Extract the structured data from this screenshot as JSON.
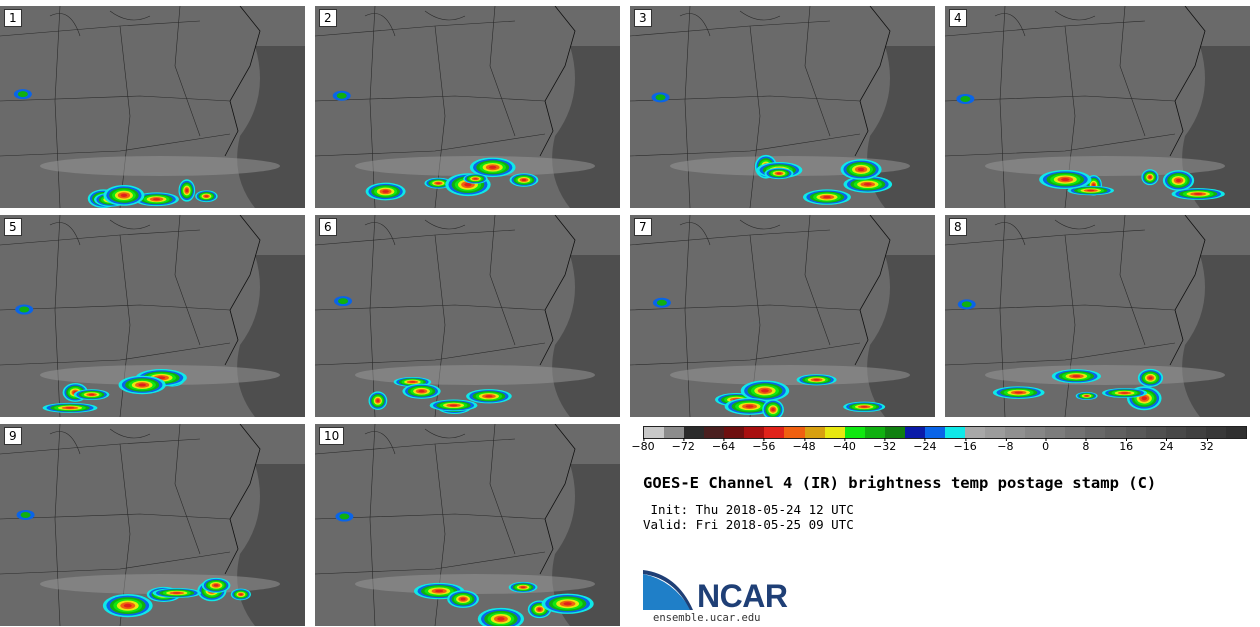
{
  "panels": [
    {
      "label": "1"
    },
    {
      "label": "2"
    },
    {
      "label": "3"
    },
    {
      "label": "4"
    },
    {
      "label": "5"
    },
    {
      "label": "6"
    },
    {
      "label": "7"
    },
    {
      "label": "8"
    },
    {
      "label": "9"
    },
    {
      "label": "10"
    }
  ],
  "colorbar": {
    "colors": [
      "#c8c8c8",
      "#8c8c8c",
      "#2b2b2b",
      "#4a1f1f",
      "#6e0f0f",
      "#a80f0f",
      "#e0221a",
      "#f06010",
      "#d8a010",
      "#e8e810",
      "#10e810",
      "#10b010",
      "#108010",
      "#0a1aa8",
      "#0a64e8",
      "#10e8e8",
      "#a8a8a8",
      "#9c9c9c",
      "#909090",
      "#868686",
      "#7c7c7c",
      "#727272",
      "#686868",
      "#606060",
      "#585858",
      "#505050",
      "#484848",
      "#404040",
      "#383838",
      "#303030"
    ],
    "ticks": [
      "−80",
      "−72",
      "−64",
      "−56",
      "−48",
      "−40",
      "−32",
      "−24",
      "−16",
      "−8",
      "0",
      "8",
      "16",
      "24",
      "32"
    ]
  },
  "title": "GOES-E Channel 4 (IR) brightness temp postage stamp (C)",
  "init": " Init: Thu 2018-05-24 12 UTC",
  "valid": "Valid: Fri 2018-05-25 09 UTC",
  "logo_text": "NCAR",
  "site": "ensemble.ucar.edu"
}
